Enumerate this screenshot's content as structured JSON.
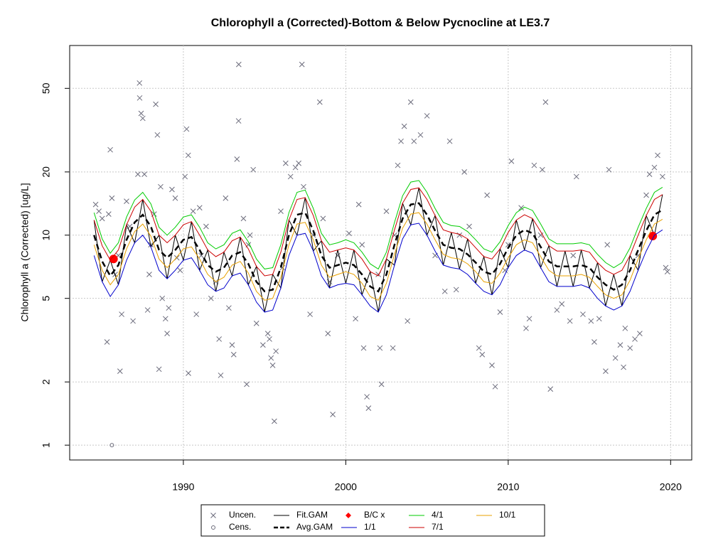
{
  "chart_data": {
    "type": "line",
    "title": "Chlorophyll a (Corrected)-Bottom & Below Pycnocline at LE3.7",
    "y_label": "Chlorophyll a (Corrected) [ug/L]",
    "log_y": true,
    "grid": true,
    "xlim": [
      1983.0,
      2021.3
    ],
    "xticks": [
      1990,
      2000,
      2010,
      2020
    ],
    "ylim": [
      0.85,
      80
    ],
    "yticks": [
      1,
      2,
      5,
      10,
      20,
      50
    ],
    "x": [
      1984.5,
      1985,
      1985.5,
      1986,
      1986.5,
      1987,
      1987.5,
      1988,
      1988.5,
      1989,
      1989.5,
      1990,
      1990.5,
      1991,
      1991.5,
      1992,
      1992.5,
      1993,
      1993.5,
      1994,
      1994.5,
      1995,
      1995.5,
      1996,
      1996.5,
      1997,
      1997.5,
      1998,
      1998.5,
      1999,
      1999.5,
      2000,
      2000.5,
      2001,
      2001.5,
      2002,
      2002.5,
      2003,
      2003.5,
      2004,
      2004.5,
      2005,
      2005.5,
      2006,
      2006.5,
      2007,
      2007.5,
      2008,
      2008.5,
      2009,
      2009.5,
      2010,
      2010.5,
      2011,
      2011.5,
      2012,
      2012.5,
      2013,
      2013.5,
      2014,
      2014.5,
      2015,
      2015.5,
      2016,
      2016.5,
      2017,
      2017.5,
      2018,
      2018.5,
      2019,
      2019.5
    ],
    "series": [
      {
        "name": "Uncen.",
        "color": "#6b6b7b",
        "marker": "x",
        "x": [
          1984.6,
          1984.8,
          1985,
          1985.3,
          1985.5,
          1985.6,
          1985.4,
          1985.8,
          1986.1,
          1986.2,
          1986.5,
          1986.7,
          1986.9,
          1987.2,
          1987.3,
          1987.31,
          1987.4,
          1987.5,
          1987.6,
          1987.8,
          1987.9,
          1988.2,
          1988.3,
          1988.4,
          1988.5,
          1988.6,
          1988.7,
          1988.9,
          1989,
          1989.1,
          1989.3,
          1989.5,
          1989.6,
          1989.8,
          1990.1,
          1990.2,
          1990.3,
          1990.31,
          1990.6,
          1990.8,
          1991,
          1991.4,
          1991.7,
          1992,
          1992.2,
          1992.3,
          1992.6,
          1992.8,
          1993,
          1993.1,
          1993.3,
          1993.4,
          1993.41,
          1993.7,
          1993.9,
          1994.1,
          1994.3,
          1994.5,
          1994.9,
          1995.2,
          1995.3,
          1995.4,
          1995.5,
          1995.6,
          1995.7,
          1996,
          1996.3,
          1996.6,
          1996.9,
          1997.1,
          1997.3,
          1997.4,
          1997.8,
          1998,
          1998.4,
          1998.6,
          1998.9,
          1999.2,
          1999.5,
          2000.2,
          2000.6,
          2000.8,
          2001.1,
          2001.3,
          2001.4,
          2002,
          2002.1,
          2002.2,
          2002.5,
          2002.9,
          2003.2,
          2003.4,
          2003.6,
          2003.8,
          2004,
          2004.2,
          2004.6,
          2005,
          2006.1,
          2006.4,
          2006.8,
          2007.3,
          2007.6,
          2008.2,
          2008.4,
          2008.7,
          2009,
          2009.2,
          2009.5,
          2009.8,
          2010.2,
          2010.8,
          2011.1,
          2011.3,
          2011.6,
          2012.1,
          2012.3,
          2012.6,
          2013,
          2013.3,
          2013.8,
          2014.2,
          2014.6,
          2015.1,
          2015.3,
          2015.6,
          2016,
          2016.2,
          2016.6,
          2016.9,
          2017.1,
          2017.2,
          2017.5,
          2017.8,
          2018.1,
          2018.5,
          2018.7,
          2019,
          2019.2,
          2019.5,
          2019.7,
          2019.8,
          1986,
          1988,
          1991.1,
          1994,
          1996.1,
          1999,
          2001,
          2003,
          2005.5,
          2007,
          2010,
          2012,
          2014,
          2016.1,
          2018
        ],
        "values": [
          14,
          13,
          12,
          3.1,
          25.5,
          15,
          12.6,
          6.5,
          2.25,
          4.2,
          14.5,
          11,
          3.9,
          19.5,
          53,
          45,
          38,
          36,
          19.5,
          4.4,
          6.5,
          12.6,
          42,
          30,
          2.3,
          17,
          5,
          4,
          3.4,
          4.5,
          16.5,
          15,
          7.8,
          6.8,
          19,
          32,
          24,
          2.2,
          13,
          4.2,
          13.5,
          11,
          5,
          6,
          3.2,
          2.15,
          15,
          4.5,
          3,
          2.7,
          23,
          35,
          65,
          12,
          1.95,
          10,
          20.5,
          3.8,
          3,
          3.4,
          3.2,
          2.6,
          2.4,
          1.3,
          2.8,
          13,
          22,
          19,
          21,
          22,
          65,
          17,
          4.2,
          10,
          43,
          12,
          3.4,
          1.4,
          8,
          10.2,
          4,
          14,
          2.9,
          1.7,
          1.5,
          6.5,
          2.9,
          1.95,
          13,
          2.9,
          21.5,
          28,
          33,
          3.9,
          43,
          28,
          30,
          37,
          5.4,
          28,
          5.5,
          20,
          11,
          2.9,
          2.7,
          15.5,
          2.4,
          1.9,
          4.3,
          6.8,
          22.5,
          13.5,
          3.6,
          4,
          21.5,
          20.5,
          43,
          1.85,
          4.4,
          4.7,
          3.9,
          19,
          4.2,
          3.9,
          3.1,
          4,
          2.25,
          20.5,
          2.6,
          3,
          2.35,
          3.6,
          2.9,
          3.2,
          3.4,
          15.5,
          19.5,
          21,
          24,
          19,
          7,
          6.7,
          8,
          9,
          8,
          9,
          7,
          6,
          9,
          10,
          8,
          10,
          9,
          10,
          8,
          9,
          8
        ]
      },
      {
        "name": "Cens.",
        "color": "#6b6b7b",
        "marker": "circle",
        "x": [
          1985.6
        ],
        "values": [
          1
        ]
      },
      {
        "name": "Fit.GAM",
        "color": "#000000",
        "line": "solid",
        "values": [
          11.8,
          6,
          7.6,
          5.8,
          11.2,
          9.2,
          14.8,
          8.8,
          10,
          6.2,
          10,
          7.6,
          11.6,
          6.8,
          8.5,
          5.4,
          8.3,
          6.4,
          9.8,
          5.8,
          7.1,
          4.3,
          6.5,
          5.6,
          11.8,
          10,
          15.1,
          8.4,
          9.4,
          5.6,
          8.5,
          5.9,
          8.5,
          5.2,
          6.7,
          4.3,
          7.7,
          7.2,
          14.2,
          11.2,
          16.8,
          10,
          12.4,
          7.2,
          10.3,
          6.9,
          9.6,
          5.9,
          7.9,
          5.2,
          8.6,
          7,
          11.8,
          8.5,
          12,
          7,
          8.9,
          5.7,
          8.4,
          5.7,
          8.5,
          5.6,
          7.4,
          4.6,
          6.5,
          4.6,
          8,
          6.8,
          12.4,
          10,
          15.6
        ]
      },
      {
        "name": "Avg.GAM",
        "color": "#000000",
        "line": "dashed",
        "values": [
          10,
          7.5,
          6.4,
          7.2,
          9.5,
          11.5,
          12.5,
          11,
          8.5,
          7.8,
          8.5,
          9.5,
          9.8,
          8.5,
          7.2,
          6.7,
          7,
          8,
          8.3,
          7.3,
          6,
          5.4,
          5.5,
          7,
          10,
          12.5,
          12.8,
          10.5,
          8,
          7,
          7.2,
          7.4,
          7.2,
          6.5,
          5.7,
          5.4,
          6.5,
          9,
          12,
          14,
          14.2,
          12.5,
          10.5,
          9,
          8.7,
          8.6,
          8.1,
          7.4,
          6.7,
          6.5,
          7.3,
          8.7,
          10,
          10.6,
          10.2,
          8.8,
          7.5,
          7.1,
          7.1,
          7.1,
          7.2,
          7,
          6.3,
          5.8,
          5.5,
          5.8,
          6.8,
          8.5,
          10.5,
          12.5,
          13.2
        ]
      },
      {
        "name": "B/C x",
        "color": "#ff0000",
        "marker": "dot",
        "x": [
          1985.7,
          2018.9
        ],
        "values": [
          7.7,
          9.9
        ]
      },
      {
        "name": "1/1",
        "color": "#0000cc",
        "line": "solid",
        "values": [
          8,
          6,
          5.1,
          5.8,
          7.6,
          9.2,
          10,
          8.8,
          6.8,
          6.2,
          6.8,
          7.6,
          7.8,
          6.8,
          5.8,
          5.4,
          5.6,
          6.4,
          6.6,
          5.8,
          4.8,
          4.3,
          4.4,
          5.6,
          8,
          10,
          10.2,
          8.4,
          6.4,
          5.6,
          5.8,
          5.9,
          5.8,
          5.2,
          4.6,
          4.3,
          5.2,
          7.2,
          9.6,
          11.2,
          11.4,
          10,
          8.4,
          7.2,
          7,
          6.9,
          6.5,
          5.9,
          5.4,
          5.2,
          5.8,
          7,
          8,
          8.5,
          8.2,
          7,
          6,
          5.7,
          5.7,
          5.7,
          5.8,
          5.6,
          5,
          4.6,
          4.4,
          4.6,
          5.4,
          6.8,
          8.4,
          10,
          10.6
        ]
      },
      {
        "name": "4/1",
        "color": "#00cc00",
        "line": "solid",
        "values": [
          12.8,
          9.6,
          8.2,
          9.2,
          12.2,
          14.7,
          16,
          14.1,
          10.9,
          10,
          10.9,
          12.2,
          12.5,
          10.9,
          9.2,
          8.6,
          9,
          10.2,
          10.6,
          9.3,
          7.7,
          6.9,
          7,
          9,
          12.8,
          16,
          16.4,
          13.4,
          10.2,
          9,
          9.2,
          9.5,
          9.2,
          8.3,
          7.3,
          6.9,
          8.3,
          11.5,
          15.4,
          17.9,
          18.2,
          16,
          13.4,
          11.5,
          11.1,
          11,
          10.4,
          9.5,
          8.6,
          8.3,
          9.3,
          11.1,
          12.8,
          13.6,
          13.1,
          11.3,
          9.6,
          9.1,
          9.1,
          9.1,
          9.2,
          9,
          8.1,
          7.4,
          7,
          7.4,
          8.7,
          10.9,
          13.4,
          16,
          16.9
        ]
      },
      {
        "name": "7/1",
        "color": "#cc0000",
        "line": "solid",
        "values": [
          11.8,
          8.9,
          7.6,
          8.5,
          11.2,
          13.6,
          14.8,
          13,
          10,
          9.2,
          10,
          11.2,
          11.6,
          10,
          8.5,
          7.9,
          8.3,
          9.4,
          9.8,
          8.6,
          7.1,
          6.4,
          6.5,
          8.3,
          11.8,
          14.8,
          15.1,
          12.4,
          9.4,
          8.3,
          8.5,
          8.7,
          8.5,
          7.7,
          6.7,
          6.4,
          7.7,
          10.6,
          14.2,
          16.5,
          16.8,
          14.8,
          12.4,
          10.6,
          10.3,
          10.1,
          9.6,
          8.7,
          7.9,
          7.7,
          8.6,
          10.3,
          11.8,
          12.5,
          12,
          10.4,
          8.9,
          8.4,
          8.4,
          8.4,
          8.5,
          8.3,
          7.4,
          6.8,
          6.5,
          6.8,
          8,
          10,
          12.4,
          14.8,
          15.6
        ]
      },
      {
        "name": "10/1",
        "color": "#e8a000",
        "line": "solid",
        "values": [
          9,
          6.8,
          5.8,
          6.5,
          8.6,
          10.4,
          11.3,
          9.9,
          7.7,
          7,
          7.7,
          8.6,
          8.8,
          7.7,
          6.5,
          6,
          6.3,
          7.2,
          7.5,
          6.6,
          5.4,
          4.9,
          5,
          6.3,
          9,
          11.3,
          11.5,
          9.5,
          7.2,
          6.3,
          6.5,
          6.7,
          6.5,
          5.9,
          5.1,
          4.9,
          5.9,
          8.1,
          10.8,
          12.6,
          12.8,
          11.3,
          9.5,
          8.1,
          7.8,
          7.7,
          7.3,
          6.7,
          6,
          5.9,
          6.6,
          7.8,
          9,
          9.5,
          9.2,
          7.9,
          6.8,
          6.4,
          6.4,
          6.4,
          6.5,
          6.3,
          5.7,
          5.2,
          5,
          5.2,
          6.1,
          7.7,
          9.5,
          11.3,
          11.9
        ]
      }
    ]
  }
}
